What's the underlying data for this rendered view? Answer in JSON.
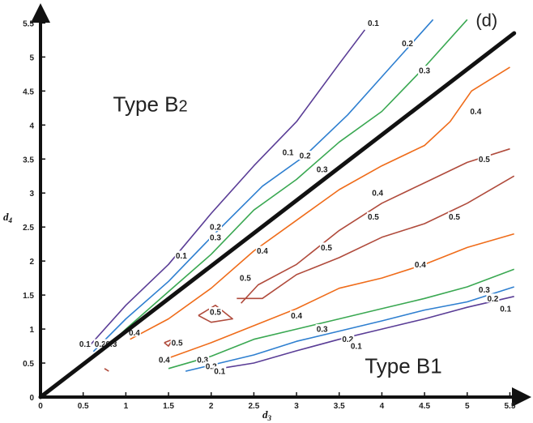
{
  "chart_data": {
    "type": "line",
    "xlabel": "d",
    "xlabel_sub": "3",
    "ylabel": "d",
    "ylabel_sub": "4",
    "xlim": [
      0,
      5.6
    ],
    "ylim": [
      0,
      5.6
    ],
    "x_ticks": [
      "0",
      "0.5",
      "1",
      "1.5",
      "2",
      "2.5",
      "3",
      "3.5",
      "4",
      "4.5",
      "5",
      "5.5"
    ],
    "y_ticks": [
      "0",
      "0.5",
      "1",
      "1.5",
      "2",
      "2.5",
      "3",
      "3.5",
      "4",
      "4.5",
      "5",
      "5.5"
    ],
    "grid": false,
    "region_labels": [
      {
        "main": "Type B",
        "suffix": "2",
        "x": 0.85,
        "y": 4.2
      },
      {
        "main": "Type B1",
        "suffix": "",
        "x": 3.8,
        "y": 0.35
      }
    ],
    "reference_line": {
      "name": "(d)",
      "x": [
        0,
        5.55
      ],
      "y": [
        0,
        5.35
      ],
      "label_x": 5.1,
      "label_y": 5.45
    },
    "contours": [
      {
        "level": "0.1",
        "color": "#5a3d96",
        "x": [
          0.55,
          1.0,
          1.5,
          2.0,
          2.5,
          3.0,
          3.5,
          3.8
        ],
        "y": [
          0.72,
          1.35,
          1.95,
          2.7,
          3.4,
          4.05,
          4.9,
          5.4
        ],
        "labels": [
          {
            "text": "0.1",
            "x": 0.52,
            "y": 0.78
          },
          {
            "text": "0.1",
            "x": 1.65,
            "y": 2.08
          },
          {
            "text": "0.1",
            "x": 2.9,
            "y": 3.6
          },
          {
            "text": "0.1",
            "x": 3.9,
            "y": 5.5
          }
        ]
      },
      {
        "level": "0.2",
        "color": "#2e7fd0",
        "x": [
          0.62,
          1.0,
          1.5,
          2.0,
          2.6,
          3.1,
          3.6,
          4.1,
          4.6
        ],
        "y": [
          0.67,
          1.15,
          1.7,
          2.35,
          3.1,
          3.55,
          4.15,
          4.85,
          5.55
        ],
        "labels": [
          {
            "text": "0.2",
            "x": 0.7,
            "y": 0.78
          },
          {
            "text": "0.2",
            "x": 2.05,
            "y": 2.5
          },
          {
            "text": "0.2",
            "x": 3.1,
            "y": 3.55
          },
          {
            "text": "0.2",
            "x": 4.3,
            "y": 5.2
          }
        ]
      },
      {
        "level": "0.3",
        "color": "#3aa852",
        "x": [
          0.72,
          1.0,
          1.5,
          2.0,
          2.5,
          3.0,
          3.5,
          4.0,
          4.5,
          5.0
        ],
        "y": [
          0.67,
          1.0,
          1.55,
          2.1,
          2.75,
          3.2,
          3.75,
          4.2,
          4.85,
          5.55
        ],
        "labels": [
          {
            "text": "0.3",
            "x": 0.83,
            "y": 0.78
          },
          {
            "text": "0.3",
            "x": 2.05,
            "y": 2.35
          },
          {
            "text": "0.3",
            "x": 3.3,
            "y": 3.35
          },
          {
            "text": "0.3",
            "x": 4.5,
            "y": 4.8
          }
        ]
      },
      {
        "level": "0.4",
        "color": "#ef6c1a",
        "x": [
          1.05,
          1.5,
          2.0,
          2.5,
          3.0,
          3.5,
          4.0,
          4.5,
          4.8,
          5.05,
          5.5
        ],
        "y": [
          0.85,
          1.15,
          1.6,
          2.15,
          2.6,
          3.05,
          3.4,
          3.7,
          4.05,
          4.5,
          4.85
        ],
        "labels": [
          {
            "text": "0.4",
            "x": 1.1,
            "y": 0.95
          },
          {
            "text": "0.4",
            "x": 2.6,
            "y": 2.15
          },
          {
            "text": "0.4",
            "x": 3.95,
            "y": 3.0
          },
          {
            "text": "0.4",
            "x": 5.1,
            "y": 4.2
          }
        ]
      },
      {
        "level": "0.4",
        "color": "#ef6c1a",
        "x": [
          1.45,
          2.0,
          2.5,
          3.0,
          3.5,
          4.0,
          4.5,
          5.0,
          5.55
        ],
        "y": [
          0.55,
          0.8,
          1.05,
          1.3,
          1.6,
          1.75,
          1.95,
          2.2,
          2.4
        ],
        "labels": [
          {
            "text": "0.4",
            "x": 1.45,
            "y": 0.55
          },
          {
            "text": "0.4",
            "x": 3.0,
            "y": 1.2
          },
          {
            "text": "0.4",
            "x": 4.45,
            "y": 1.95
          }
        ]
      },
      {
        "level": "0.5",
        "color": "#b04b3c",
        "x": [
          2.35,
          2.55,
          3.0,
          3.5,
          4.0,
          4.5,
          5.0,
          5.5
        ],
        "y": [
          1.38,
          1.65,
          1.95,
          2.45,
          2.85,
          3.15,
          3.45,
          3.65
        ],
        "labels": [
          {
            "text": "0.5",
            "x": 2.4,
            "y": 1.75
          },
          {
            "text": "0.5",
            "x": 3.9,
            "y": 2.65
          },
          {
            "text": "0.5",
            "x": 5.2,
            "y": 3.5
          }
        ]
      },
      {
        "level": "0.5",
        "color": "#b04b3c",
        "x": [
          2.3,
          2.6,
          3.0,
          3.5,
          4.0,
          4.5,
          5.0,
          5.55
        ],
        "y": [
          1.45,
          1.45,
          1.8,
          2.05,
          2.35,
          2.55,
          2.85,
          3.25
        ],
        "labels": [
          {
            "text": "0.5",
            "x": 3.35,
            "y": 2.2
          },
          {
            "text": "0.5",
            "x": 4.85,
            "y": 2.65
          }
        ]
      },
      {
        "level": "0.5",
        "color": "#b04b3c",
        "x": [
          1.85,
          2.05,
          2.25,
          2.0,
          1.85
        ],
        "y": [
          1.2,
          1.35,
          1.15,
          1.1,
          1.2
        ],
        "labels": [
          {
            "text": "0.5",
            "x": 2.05,
            "y": 1.25
          }
        ]
      },
      {
        "level": "0.5",
        "color": "#b04b3c",
        "x": [
          1.45,
          1.55,
          1.5,
          1.45
        ],
        "y": [
          0.8,
          0.85,
          0.75,
          0.8
        ],
        "labels": [
          {
            "text": "0.5",
            "x": 1.6,
            "y": 0.8
          }
        ]
      },
      {
        "level": "0.5",
        "color": "#b04b3c",
        "x": [
          0.75,
          0.8
        ],
        "y": [
          0.42,
          0.38
        ],
        "labels": []
      },
      {
        "level": "0.3",
        "color": "#3aa852",
        "x": [
          1.5,
          2.0,
          2.5,
          3.0,
          3.5,
          4.0,
          4.5,
          5.0,
          5.55
        ],
        "y": [
          0.42,
          0.6,
          0.85,
          1.0,
          1.15,
          1.3,
          1.45,
          1.62,
          1.88
        ],
        "labels": [
          {
            "text": "0.3",
            "x": 1.9,
            "y": 0.55
          },
          {
            "text": "0.3",
            "x": 3.3,
            "y": 1.0
          },
          {
            "text": "0.3",
            "x": 5.2,
            "y": 1.58
          }
        ]
      },
      {
        "level": "0.2",
        "color": "#2e7fd0",
        "x": [
          1.7,
          2.0,
          2.5,
          3.0,
          3.5,
          4.0,
          4.5,
          5.0,
          5.55
        ],
        "y": [
          0.38,
          0.47,
          0.62,
          0.82,
          0.97,
          1.12,
          1.28,
          1.4,
          1.62
        ],
        "labels": [
          {
            "text": "0.2",
            "x": 2.0,
            "y": 0.45
          },
          {
            "text": "0.2",
            "x": 3.6,
            "y": 0.85
          },
          {
            "text": "0.2",
            "x": 5.3,
            "y": 1.45
          }
        ]
      },
      {
        "level": "0.1",
        "color": "#5a3d96",
        "x": [
          2.1,
          2.5,
          3.0,
          3.5,
          4.0,
          4.5,
          5.0,
          5.55
        ],
        "y": [
          0.42,
          0.5,
          0.68,
          0.85,
          1.0,
          1.15,
          1.32,
          1.48
        ],
        "labels": [
          {
            "text": "0.1",
            "x": 2.1,
            "y": 0.38
          },
          {
            "text": "0.1",
            "x": 3.7,
            "y": 0.75
          },
          {
            "text": "0.1",
            "x": 5.45,
            "y": 1.3
          }
        ]
      }
    ]
  }
}
